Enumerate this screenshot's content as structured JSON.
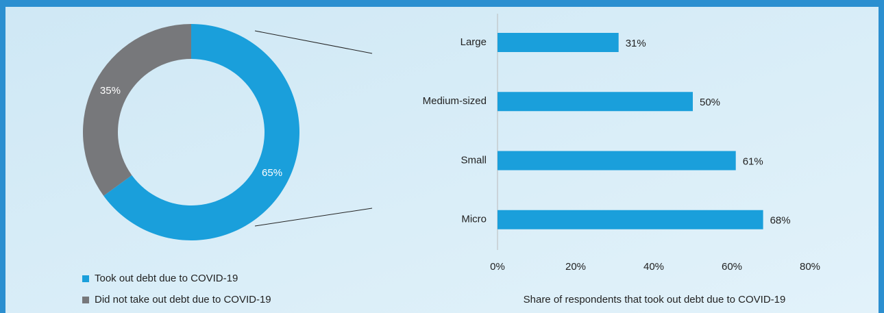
{
  "chart_data": [
    {
      "type": "donut",
      "categories": [
        "Took out debt due to COVID-19",
        "Did not take out debt due to COVID-19"
      ],
      "values": [
        65,
        35
      ],
      "value_labels": [
        "65%",
        "35%"
      ],
      "colors": [
        "#1a9fdb",
        "#77787b"
      ]
    },
    {
      "type": "hbar",
      "categories": [
        "Large",
        "Medium-sized",
        "Small",
        "Micro"
      ],
      "values": [
        31,
        50,
        61,
        68
      ],
      "value_labels": [
        "31%",
        "50%",
        "61%",
        "68%"
      ],
      "color": "#1a9fdb",
      "xlim": [
        0,
        80
      ],
      "xticks": [
        {
          "value": 0,
          "label": "0%"
        },
        {
          "value": 20,
          "label": "20%"
        },
        {
          "value": 40,
          "label": "40%"
        },
        {
          "value": 60,
          "label": "60%"
        },
        {
          "value": 80,
          "label": "80%"
        }
      ],
      "xlabel": "Share of respondents that took out debt due to COVID-19"
    }
  ]
}
